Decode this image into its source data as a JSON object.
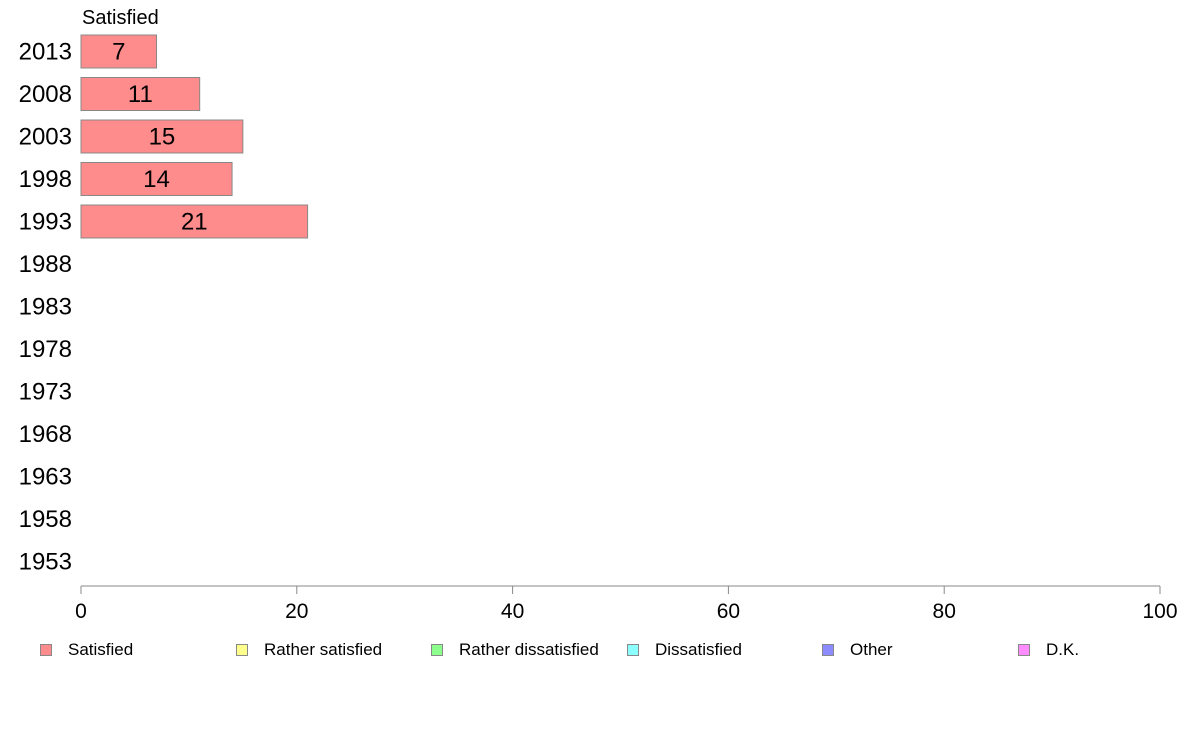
{
  "chart_data": {
    "type": "bar",
    "orientation": "horizontal",
    "title": "",
    "series_title": "Satisfied",
    "categories": [
      "2013",
      "2008",
      "2003",
      "1998",
      "1993",
      "1988",
      "1983",
      "1978",
      "1973",
      "1968",
      "1963",
      "1958",
      "1953"
    ],
    "series": [
      {
        "name": "Satisfied",
        "color": "#ff8c8c",
        "values": [
          7,
          11,
          15,
          14,
          21,
          null,
          null,
          null,
          null,
          null,
          null,
          null,
          null
        ]
      }
    ],
    "xlim": [
      0,
      100
    ],
    "xticks": [
      0,
      20,
      40,
      60,
      80,
      100
    ],
    "grid": false,
    "legend_position": "bottom",
    "legend": [
      {
        "label": "Satisfied",
        "color": "#ff8c8c"
      },
      {
        "label": "Rather satisfied",
        "color": "#ffff8c"
      },
      {
        "label": "Rather dissatisfied",
        "color": "#8cff8c"
      },
      {
        "label": "Dissatisfied",
        "color": "#8cffff"
      },
      {
        "label": "Other",
        "color": "#8c8cff"
      },
      {
        "label": "D.K.",
        "color": "#ff8cff"
      }
    ]
  }
}
